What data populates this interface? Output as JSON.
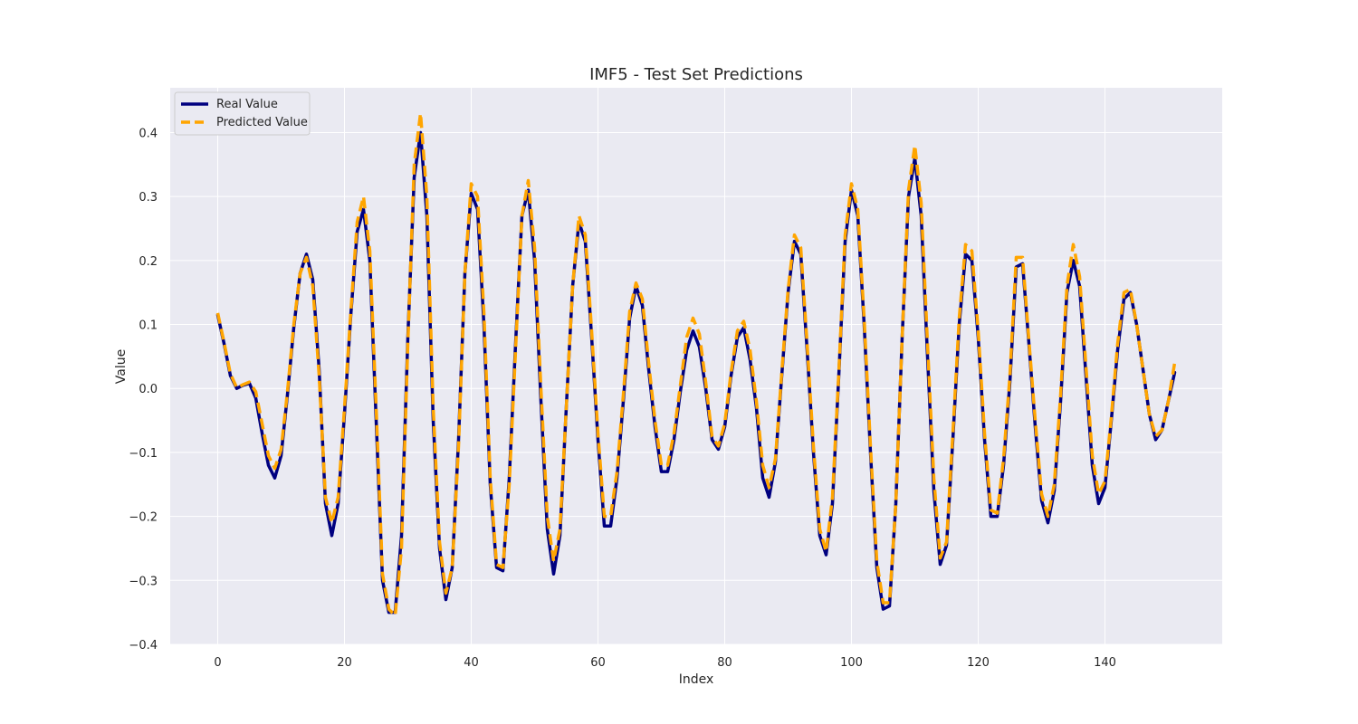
{
  "chart_data": {
    "type": "line",
    "title": "IMF5 - Test Set Predictions",
    "xlabel": "Index",
    "ylabel": "Value",
    "xlim": [
      -7.5,
      158.5
    ],
    "ylim": [
      -0.4,
      0.47
    ],
    "xticks": [
      0,
      20,
      40,
      60,
      80,
      100,
      120,
      140
    ],
    "yticks": [
      -0.4,
      -0.3,
      -0.2,
      -0.1,
      0.0,
      0.1,
      0.2,
      0.3,
      0.4
    ],
    "ytick_labels": [
      "−0.4",
      "−0.3",
      "−0.2",
      "−0.1",
      "0.0",
      "0.1",
      "0.2",
      "0.3",
      "0.4"
    ],
    "grid": true,
    "legend_position": "upper left",
    "background_color": "#eaeaf2",
    "series": [
      {
        "name": "Real Value",
        "color": "#000080",
        "style": "solid",
        "values": [
          0.115,
          0.07,
          0.02,
          0.0,
          0.005,
          0.008,
          -0.015,
          -0.07,
          -0.12,
          -0.14,
          -0.105,
          -0.01,
          0.095,
          0.18,
          0.21,
          0.17,
          0.03,
          -0.18,
          -0.23,
          -0.18,
          -0.04,
          0.115,
          0.245,
          0.28,
          0.2,
          -0.05,
          -0.3,
          -0.35,
          -0.35,
          -0.23,
          0.08,
          0.33,
          0.4,
          0.27,
          -0.05,
          -0.25,
          -0.33,
          -0.28,
          -0.08,
          0.18,
          0.305,
          0.28,
          0.1,
          -0.15,
          -0.28,
          -0.285,
          -0.14,
          0.07,
          0.27,
          0.31,
          0.2,
          -0.02,
          -0.22,
          -0.29,
          -0.23,
          -0.03,
          0.16,
          0.26,
          0.23,
          0.08,
          -0.08,
          -0.215,
          -0.215,
          -0.14,
          -0.02,
          0.11,
          0.16,
          0.13,
          0.03,
          -0.06,
          -0.13,
          -0.13,
          -0.08,
          -0.005,
          0.06,
          0.09,
          0.065,
          0.0,
          -0.08,
          -0.095,
          -0.06,
          0.02,
          0.08,
          0.095,
          0.045,
          -0.03,
          -0.14,
          -0.17,
          -0.115,
          0.02,
          0.15,
          0.23,
          0.21,
          0.06,
          -0.1,
          -0.23,
          -0.26,
          -0.18,
          0.02,
          0.23,
          0.31,
          0.27,
          0.1,
          -0.1,
          -0.28,
          -0.345,
          -0.34,
          -0.18,
          0.08,
          0.3,
          0.36,
          0.27,
          0.05,
          -0.16,
          -0.275,
          -0.245,
          -0.08,
          0.1,
          0.21,
          0.2,
          0.08,
          -0.08,
          -0.2,
          -0.2,
          -0.12,
          0.01,
          0.19,
          0.195,
          0.07,
          -0.06,
          -0.175,
          -0.21,
          -0.16,
          -0.02,
          0.15,
          0.2,
          0.16,
          0.02,
          -0.12,
          -0.18,
          -0.155,
          -0.05,
          0.06,
          0.14,
          0.15,
          0.1,
          0.03,
          -0.04,
          -0.08,
          -0.065,
          -0.02,
          0.025
        ]
      },
      {
        "name": "Predicted Value",
        "color": "#ffa500",
        "style": "dashed",
        "values": [
          0.118,
          0.072,
          0.023,
          0.001,
          0.006,
          0.01,
          -0.005,
          -0.055,
          -0.105,
          -0.125,
          -0.095,
          -0.005,
          0.1,
          0.18,
          0.205,
          0.16,
          0.02,
          -0.17,
          -0.21,
          -0.17,
          -0.03,
          0.12,
          0.26,
          0.3,
          0.215,
          -0.03,
          -0.29,
          -0.345,
          -0.355,
          -0.25,
          0.07,
          0.35,
          0.43,
          0.3,
          -0.03,
          -0.24,
          -0.32,
          -0.28,
          -0.09,
          0.18,
          0.32,
          0.3,
          0.12,
          -0.14,
          -0.275,
          -0.28,
          -0.15,
          0.06,
          0.27,
          0.325,
          0.22,
          0.0,
          -0.2,
          -0.27,
          -0.22,
          -0.03,
          0.16,
          0.27,
          0.24,
          0.09,
          -0.07,
          -0.2,
          -0.2,
          -0.13,
          -0.01,
          0.12,
          0.165,
          0.14,
          0.04,
          -0.05,
          -0.12,
          -0.12,
          -0.07,
          0.005,
          0.08,
          0.11,
          0.085,
          0.01,
          -0.075,
          -0.09,
          -0.055,
          0.025,
          0.09,
          0.105,
          0.06,
          -0.02,
          -0.12,
          -0.155,
          -0.11,
          0.025,
          0.155,
          0.24,
          0.22,
          0.07,
          -0.09,
          -0.22,
          -0.255,
          -0.17,
          0.025,
          0.24,
          0.32,
          0.28,
          0.11,
          -0.09,
          -0.27,
          -0.335,
          -0.335,
          -0.18,
          0.08,
          0.31,
          0.38,
          0.29,
          0.07,
          -0.14,
          -0.265,
          -0.24,
          -0.07,
          0.11,
          0.225,
          0.215,
          0.09,
          -0.07,
          -0.19,
          -0.195,
          -0.11,
          0.02,
          0.205,
          0.205,
          0.075,
          -0.05,
          -0.165,
          -0.2,
          -0.15,
          -0.01,
          0.16,
          0.225,
          0.175,
          0.035,
          -0.105,
          -0.165,
          -0.145,
          -0.045,
          0.07,
          0.15,
          0.155,
          0.1,
          0.03,
          -0.04,
          -0.075,
          -0.065,
          -0.02,
          0.04
        ]
      }
    ]
  }
}
